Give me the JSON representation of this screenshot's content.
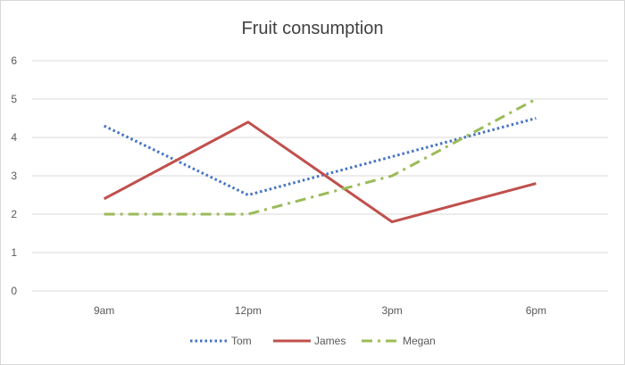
{
  "chart_data": {
    "type": "line",
    "title": "Fruit consumption",
    "categories": [
      "9am",
      "12pm",
      "3pm",
      "6pm"
    ],
    "ylim": [
      0,
      6
    ],
    "yticks": [
      0,
      1,
      2,
      3,
      4,
      5,
      6
    ],
    "grid": true,
    "legend_position": "bottom",
    "series": [
      {
        "name": "Tom",
        "values": [
          4.3,
          2.5,
          3.5,
          4.5
        ],
        "color": "#4472C4",
        "style": "dotted"
      },
      {
        "name": "James",
        "values": [
          2.4,
          4.4,
          1.8,
          2.8
        ],
        "color": "#C0504D",
        "style": "solid"
      },
      {
        "name": "Megan",
        "values": [
          2.0,
          2.0,
          3.0,
          5.0
        ],
        "color": "#9BBB59",
        "style": "dash-dot"
      }
    ]
  }
}
